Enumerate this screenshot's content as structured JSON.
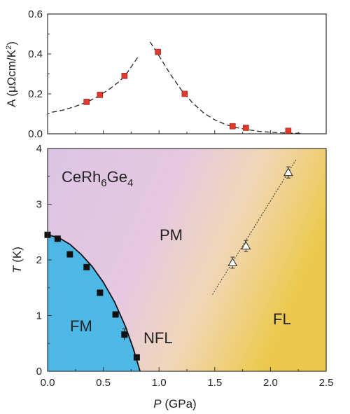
{
  "chart_data": [
    {
      "type": "scatter",
      "ylabel_main": "A (μΩcm/K",
      "ylabel_sup": "2",
      "ylabel_close": ")",
      "xlim": [
        0,
        2.5
      ],
      "ylim": [
        0,
        0.6
      ],
      "yticks": [
        "0.0",
        "0.2",
        "0.4",
        "0.6"
      ],
      "marker_color": "#e03a2f",
      "points": [
        {
          "x": 0.35,
          "y": 0.16
        },
        {
          "x": 0.47,
          "y": 0.195
        },
        {
          "x": 0.69,
          "y": 0.29
        },
        {
          "x": 0.99,
          "y": 0.41
        },
        {
          "x": 1.23,
          "y": 0.2
        },
        {
          "x": 1.66,
          "y": 0.038
        },
        {
          "x": 1.78,
          "y": 0.03
        },
        {
          "x": 2.16,
          "y": 0.015
        }
      ],
      "fit_left": [
        [
          0.04,
          0.108
        ],
        [
          0.15,
          0.12
        ],
        [
          0.25,
          0.138
        ],
        [
          0.35,
          0.158
        ],
        [
          0.45,
          0.186
        ],
        [
          0.55,
          0.222
        ],
        [
          0.65,
          0.265
        ],
        [
          0.72,
          0.31
        ],
        [
          0.78,
          0.36
        ],
        [
          0.82,
          0.392
        ]
      ],
      "fit_right": [
        [
          0.92,
          0.46
        ],
        [
          1.0,
          0.39
        ],
        [
          1.1,
          0.3
        ],
        [
          1.2,
          0.22
        ],
        [
          1.3,
          0.155
        ],
        [
          1.4,
          0.105
        ],
        [
          1.5,
          0.07
        ],
        [
          1.6,
          0.046
        ],
        [
          1.7,
          0.03
        ],
        [
          1.8,
          0.02
        ],
        [
          1.9,
          0.012
        ],
        [
          2.0,
          0.008
        ],
        [
          2.1,
          0.005
        ],
        [
          2.2,
          0.003
        ],
        [
          2.28,
          0.002
        ]
      ]
    },
    {
      "type": "scatter",
      "title": "CeRh",
      "title_sub1": "6",
      "title_mid": "Ge",
      "title_sub2": "4",
      "xlabel_var": "P",
      "xlabel_unit": " (GPa)",
      "ylabel_var": "T",
      "ylabel_unit": " (K)",
      "xlim": [
        0,
        2.5
      ],
      "ylim": [
        0,
        4
      ],
      "xticks": [
        "0.0",
        "0.5",
        "1.0",
        "1.5",
        "2.0",
        "2.5"
      ],
      "yticks": [
        "0",
        "1",
        "2",
        "3",
        "4"
      ],
      "regions": {
        "fm": "FM",
        "pm": "PM",
        "nfl": "NFL",
        "fl": "FL"
      },
      "colors": {
        "fm": "#4db7e6",
        "pm": "#e3c8e3",
        "fl": "#ebc94c"
      },
      "squares": [
        {
          "x": 0.0,
          "y": 2.45
        },
        {
          "x": 0.09,
          "y": 2.38
        },
        {
          "x": 0.2,
          "y": 2.1
        },
        {
          "x": 0.35,
          "y": 1.87
        },
        {
          "x": 0.47,
          "y": 1.41
        },
        {
          "x": 0.61,
          "y": 1.02
        },
        {
          "x": 0.69,
          "y": 0.66,
          "err": 0.1
        },
        {
          "x": 0.8,
          "y": 0.25
        }
      ],
      "triangles": [
        {
          "x": 1.66,
          "y": 1.95,
          "err": 0.1
        },
        {
          "x": 1.78,
          "y": 2.25,
          "err": 0.1
        },
        {
          "x": 2.16,
          "y": 3.57,
          "err": 0.1
        }
      ],
      "fm_boundary": [
        [
          0,
          2.45
        ],
        [
          0.1,
          2.4
        ],
        [
          0.2,
          2.28
        ],
        [
          0.3,
          2.1
        ],
        [
          0.4,
          1.88
        ],
        [
          0.5,
          1.6
        ],
        [
          0.6,
          1.25
        ],
        [
          0.7,
          0.8
        ],
        [
          0.77,
          0.4
        ],
        [
          0.83,
          0.0
        ]
      ],
      "fl_line": [
        [
          1.48,
          1.38
        ],
        [
          2.23,
          3.8
        ]
      ]
    }
  ]
}
